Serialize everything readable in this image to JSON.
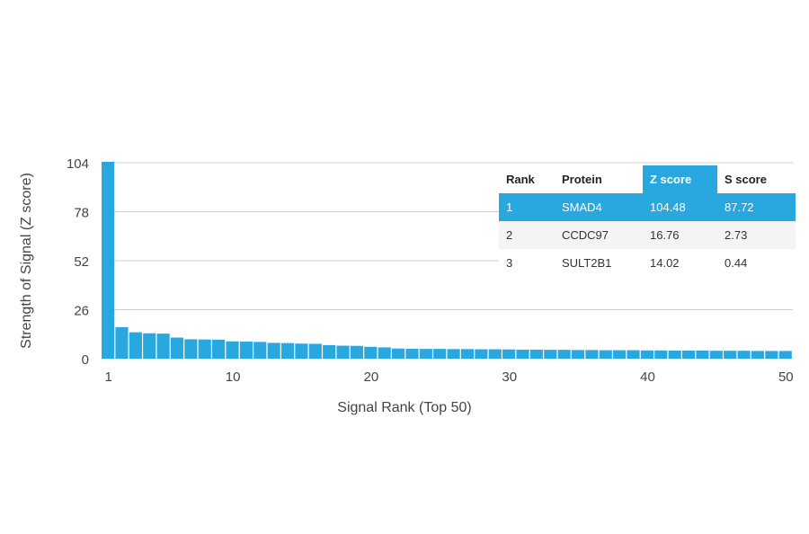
{
  "chart_data": {
    "type": "bar",
    "xlabel": "Signal Rank (Top 50)",
    "ylabel": "Strength of Signal (Z score)",
    "ylim": [
      0,
      104
    ],
    "yticks": [
      "0",
      "26",
      "52",
      "78",
      "104"
    ],
    "xticks": [
      "1",
      "10",
      "20",
      "30",
      "40",
      "50"
    ],
    "grid": true,
    "bar_color": "#29a8e0",
    "x": [
      1,
      2,
      3,
      4,
      5,
      6,
      7,
      8,
      9,
      10,
      11,
      12,
      13,
      14,
      15,
      16,
      17,
      18,
      19,
      20,
      21,
      22,
      23,
      24,
      25,
      26,
      27,
      28,
      29,
      30,
      31,
      32,
      33,
      34,
      35,
      36,
      37,
      38,
      39,
      40,
      41,
      42,
      43,
      44,
      45,
      46,
      47,
      48,
      49,
      50
    ],
    "values": [
      104.48,
      16.76,
      14.02,
      13.5,
      13.3,
      11.2,
      10.3,
      10.2,
      10.1,
      9.2,
      9.1,
      8.9,
      8.4,
      8.3,
      8,
      7.9,
      7.2,
      6.9,
      6.8,
      6.3,
      6,
      5.4,
      5.3,
      5.2,
      5.2,
      5.1,
      5.1,
      5,
      5,
      4.9,
      4.8,
      4.8,
      4.7,
      4.7,
      4.6,
      4.6,
      4.5,
      4.5,
      4.5,
      4.4,
      4.4,
      4.3,
      4.3,
      4.3,
      4.2,
      4.2,
      4.2,
      4.1,
      4.1,
      4.1
    ]
  },
  "table": {
    "headers": [
      "Rank",
      "Protein",
      "Z score",
      "S score"
    ],
    "rows": [
      [
        "1",
        "SMAD4",
        "104.48",
        "87.72"
      ],
      [
        "2",
        "CCDC97",
        "16.76",
        "2.73"
      ],
      [
        "3",
        "SULT2B1",
        "14.02",
        "0.44"
      ]
    ]
  }
}
